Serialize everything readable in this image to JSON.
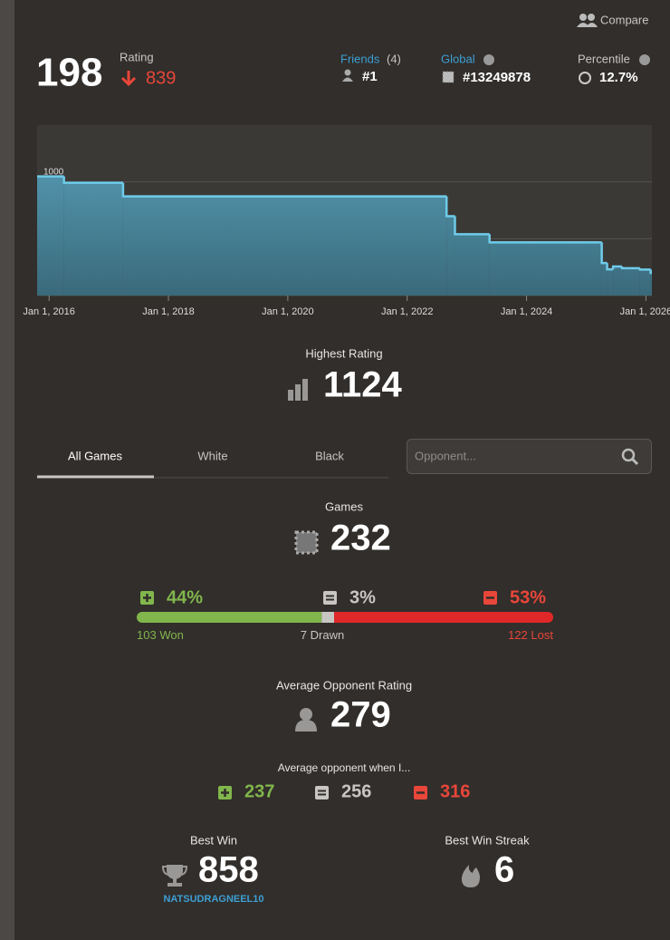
{
  "header": {
    "compare": "Compare",
    "rating": "198",
    "rating_label": "Rating",
    "rating_change": "839",
    "friends_label": "Friends",
    "friends_count": "(4)",
    "friends_rank": "#1",
    "global_label": "Global",
    "global_rank": "#13249878",
    "percentile_label": "Percentile",
    "percentile": "12.7%"
  },
  "chart_data": {
    "type": "line",
    "color": "#6fcbea",
    "x": [
      2015.8,
      2016.25,
      2017.24,
      2022.66,
      2022.8,
      2023.38,
      2025.26,
      2025.35,
      2025.45,
      2025.6,
      2025.9,
      2026.08
    ],
    "values": [
      1048,
      992,
      873,
      698,
      540,
      468,
      286,
      230,
      255,
      240,
      228,
      198
    ],
    "xlim": [
      2015.8,
      2026.1
    ],
    "ylim": [
      0,
      1500
    ],
    "xticks": [
      {
        "value": 2016,
        "label": "Jan 1, 2016"
      },
      {
        "value": 2018,
        "label": "Jan 1, 2018"
      },
      {
        "value": 2020,
        "label": "Jan 1, 2020"
      },
      {
        "value": 2022,
        "label": "Jan 1, 2022"
      },
      {
        "value": 2024,
        "label": "Jan 1, 2024"
      },
      {
        "value": 2026,
        "label": "Jan 1, 2026"
      }
    ],
    "yticks": [
      0,
      500,
      1000
    ],
    "grid": true
  },
  "highest": {
    "label": "Highest Rating",
    "value": "1124"
  },
  "tabs": [
    "All Games",
    "White",
    "Black"
  ],
  "search_placeholder": "Opponent...",
  "games": {
    "label": "Games",
    "value": "232",
    "won_pct": "44%",
    "drawn_pct": "3%",
    "lost_pct": "53%",
    "won": 103,
    "won_label": "Won",
    "drawn": 7,
    "drawn_label": "Drawn",
    "lost": 122,
    "lost_label": "Lost"
  },
  "opponent": {
    "label": "Average Opponent Rating",
    "value": "279",
    "when_label": "Average opponent when I...",
    "when_win": "237",
    "when_draw": "256",
    "when_loss": "316"
  },
  "best_win": {
    "label": "Best Win",
    "value": "858",
    "opponent": "NATSUDRAGNEEL10"
  },
  "streak": {
    "label": "Best Win Streak",
    "value": "6"
  }
}
